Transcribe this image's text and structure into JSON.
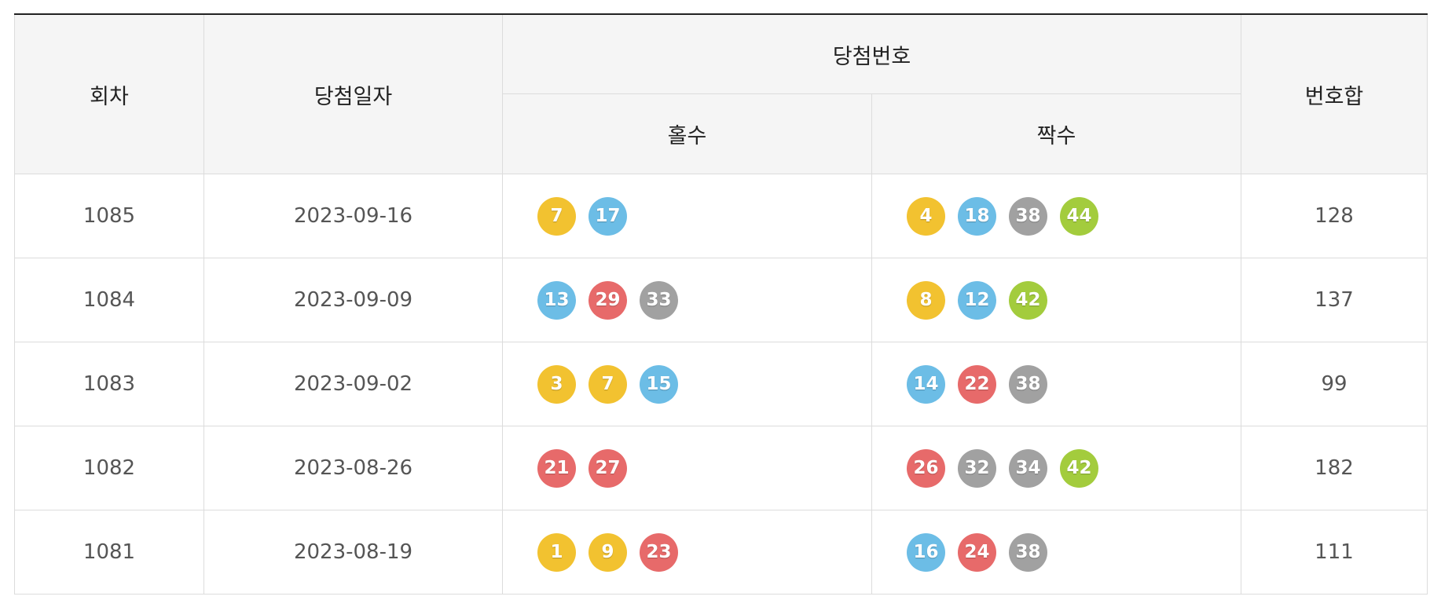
{
  "headers": {
    "round": "회차",
    "date": "당첨일자",
    "winning_numbers": "당첨번호",
    "odd": "홀수",
    "even": "짝수",
    "sum": "번호합"
  },
  "ball_colors": {
    "yellow": "#f2c230",
    "blue": "#6cbde6",
    "red": "#e76a6a",
    "gray": "#a1a1a1",
    "green": "#a3cc3d"
  },
  "rows": [
    {
      "round": "1085",
      "date": "2023-09-16",
      "odd": [
        {
          "n": "7",
          "c": "yellow"
        },
        {
          "n": "17",
          "c": "blue"
        }
      ],
      "even": [
        {
          "n": "4",
          "c": "yellow"
        },
        {
          "n": "18",
          "c": "blue"
        },
        {
          "n": "38",
          "c": "gray"
        },
        {
          "n": "44",
          "c": "green"
        }
      ],
      "sum": "128"
    },
    {
      "round": "1084",
      "date": "2023-09-09",
      "odd": [
        {
          "n": "13",
          "c": "blue"
        },
        {
          "n": "29",
          "c": "red"
        },
        {
          "n": "33",
          "c": "gray"
        }
      ],
      "even": [
        {
          "n": "8",
          "c": "yellow"
        },
        {
          "n": "12",
          "c": "blue"
        },
        {
          "n": "42",
          "c": "green"
        }
      ],
      "sum": "137"
    },
    {
      "round": "1083",
      "date": "2023-09-02",
      "odd": [
        {
          "n": "3",
          "c": "yellow"
        },
        {
          "n": "7",
          "c": "yellow"
        },
        {
          "n": "15",
          "c": "blue"
        }
      ],
      "even": [
        {
          "n": "14",
          "c": "blue"
        },
        {
          "n": "22",
          "c": "red"
        },
        {
          "n": "38",
          "c": "gray"
        }
      ],
      "sum": "99"
    },
    {
      "round": "1082",
      "date": "2023-08-26",
      "odd": [
        {
          "n": "21",
          "c": "red"
        },
        {
          "n": "27",
          "c": "red"
        }
      ],
      "even": [
        {
          "n": "26",
          "c": "red"
        },
        {
          "n": "32",
          "c": "gray"
        },
        {
          "n": "34",
          "c": "gray"
        },
        {
          "n": "42",
          "c": "green"
        }
      ],
      "sum": "182"
    },
    {
      "round": "1081",
      "date": "2023-08-19",
      "odd": [
        {
          "n": "1",
          "c": "yellow"
        },
        {
          "n": "9",
          "c": "yellow"
        },
        {
          "n": "23",
          "c": "red"
        }
      ],
      "even": [
        {
          "n": "16",
          "c": "blue"
        },
        {
          "n": "24",
          "c": "red"
        },
        {
          "n": "38",
          "c": "gray"
        }
      ],
      "sum": "111"
    }
  ]
}
